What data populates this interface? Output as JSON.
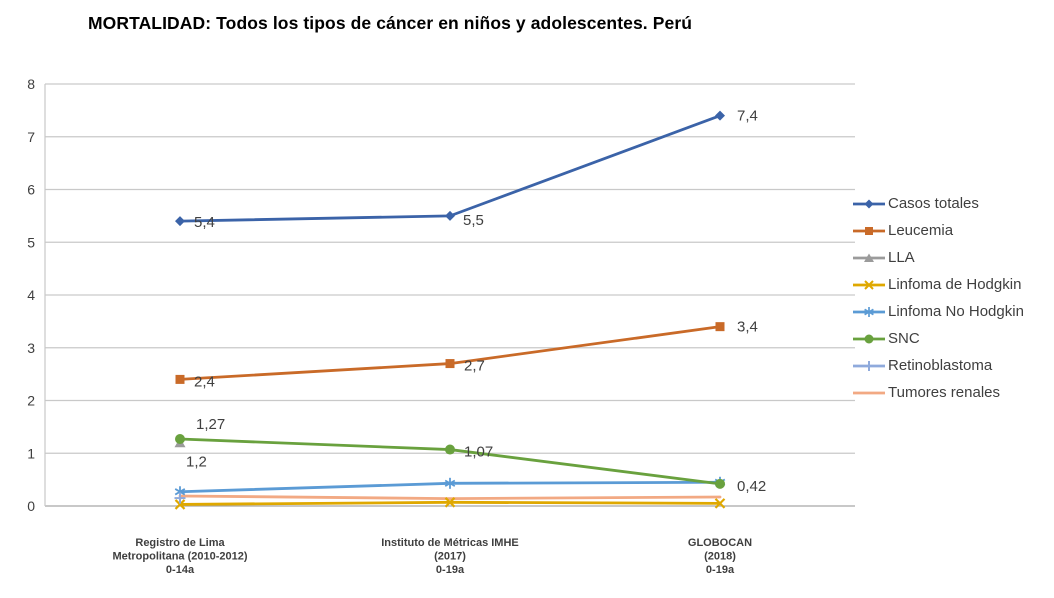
{
  "title": "MORTALIDAD: Todos los tipos de cáncer en niños y adolescentes. Perú",
  "colors": {
    "grid": "#C9C9C9",
    "axis_line": "#A6A6A6",
    "axis_text": "#3F3F3F",
    "data_label_text": "#404040",
    "background": "#FFFFFF"
  },
  "chart_data": {
    "type": "line",
    "title": "MORTALIDAD: Todos los tipos de cáncer en niños y adolescentes. Perú",
    "xlabel": "",
    "ylabel": "",
    "ylim": [
      0,
      8
    ],
    "y_ticks": [
      "0",
      "1",
      "2",
      "3",
      "4",
      "5",
      "6",
      "7",
      "8"
    ],
    "grid": true,
    "legend_position": "right",
    "categories": [
      [
        "Registro de Lima",
        "Metropolitana (2010-2012)",
        "0-14a"
      ],
      [
        "Instituto de Métricas IMHE",
        "(2017)",
        "0-19a"
      ],
      [
        "GLOBOCAN",
        "(2018)",
        "0-19a"
      ]
    ],
    "series": [
      {
        "name": "Casos totales",
        "color": "#3B63A8",
        "marker": "diamond",
        "values": [
          5.4,
          5.5,
          7.4
        ],
        "point_labels": [
          {
            "i": 0,
            "text": "5,4",
            "dx": 14,
            "dy": 6
          },
          {
            "i": 1,
            "text": "5,5",
            "dx": 13,
            "dy": 9
          },
          {
            "i": 2,
            "text": "7,4",
            "dx": 17,
            "dy": 5
          }
        ]
      },
      {
        "name": "Leucemia",
        "color": "#C96A28",
        "marker": "square",
        "values": [
          2.4,
          2.7,
          3.4
        ],
        "point_labels": [
          {
            "i": 0,
            "text": "2,4",
            "dx": 14,
            "dy": 7
          },
          {
            "i": 1,
            "text": "2,7",
            "dx": 14,
            "dy": 7
          },
          {
            "i": 2,
            "text": "3,4",
            "dx": 17,
            "dy": 5
          }
        ]
      },
      {
        "name": "LLA",
        "color": "#9B9B9B",
        "marker": "triangle",
        "values": [
          1.2,
          null,
          null
        ],
        "point_labels": [
          {
            "i": 0,
            "text": "1,2",
            "dx": 6,
            "dy": 24
          }
        ]
      },
      {
        "name": "Linfoma de Hodgkin",
        "color": "#DFA800",
        "marker": "x",
        "values": [
          0.03,
          0.07,
          0.05
        ],
        "point_labels": []
      },
      {
        "name": "Linfoma No Hodgkin",
        "color": "#5B9BD5",
        "marker": "asterisk",
        "values": [
          0.27,
          0.43,
          0.45
        ],
        "point_labels": []
      },
      {
        "name": "SNC",
        "color": "#69A13E",
        "marker": "circle",
        "values": [
          1.27,
          1.07,
          0.42
        ],
        "point_labels": [
          {
            "i": 0,
            "text": "1,27",
            "dx": 16,
            "dy": -10
          },
          {
            "i": 1,
            "text": "1,07",
            "dx": 14,
            "dy": 7
          },
          {
            "i": 2,
            "text": "0,42",
            "dx": 17,
            "dy": 7
          }
        ]
      },
      {
        "name": "Retinoblastoma",
        "color": "#8FAADC",
        "marker": "plus",
        "values": [
          0.15,
          null,
          null
        ],
        "point_labels": []
      },
      {
        "name": "Tumores renales",
        "color": "#F2A983",
        "marker": "none",
        "values": [
          0.19,
          0.14,
          0.17
        ],
        "point_labels": []
      }
    ]
  }
}
